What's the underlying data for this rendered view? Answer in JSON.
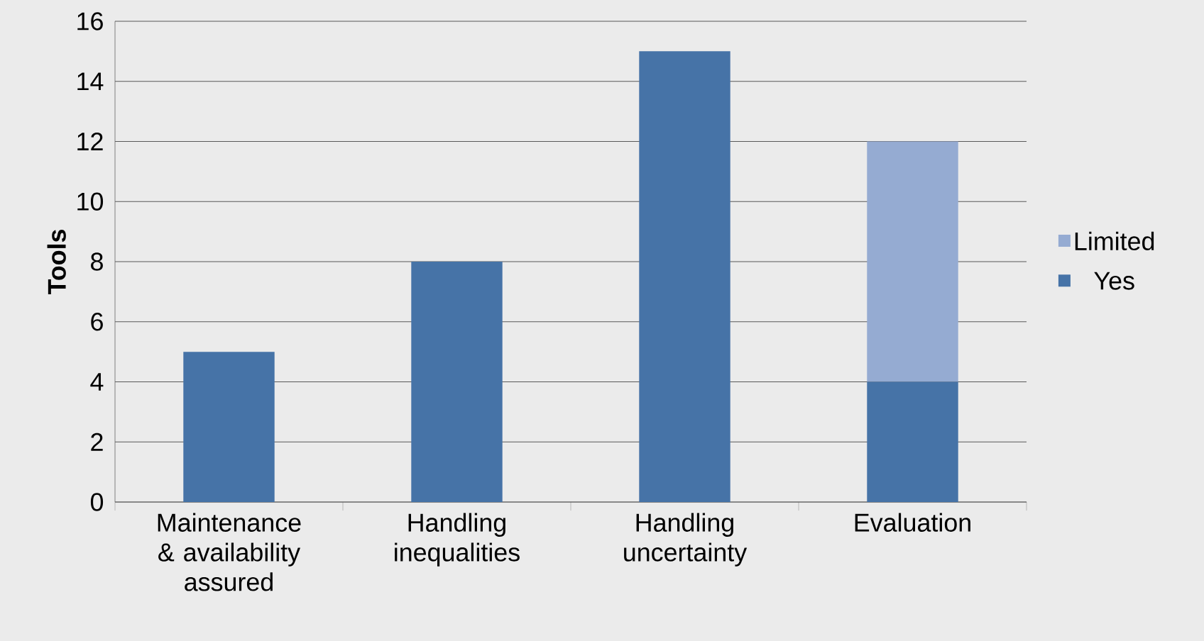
{
  "chart_data": {
    "type": "bar",
    "stacked": true,
    "ylabel": "Tools",
    "categories": [
      "Maintenance & availability assured",
      "Handling inequalities",
      "Handling uncertainty",
      "Evaluation"
    ],
    "series": [
      {
        "name": "Yes",
        "color": "#4673a7",
        "values": [
          5,
          8,
          15,
          4
        ]
      },
      {
        "name": "Limited",
        "color": "#95abd2",
        "values": [
          0,
          0,
          0,
          8
        ]
      }
    ],
    "ylim": [
      0,
      16
    ],
    "yticks": [
      0,
      2,
      4,
      6,
      8,
      10,
      12,
      14,
      16
    ],
    "grid": "y",
    "legend": "right"
  }
}
